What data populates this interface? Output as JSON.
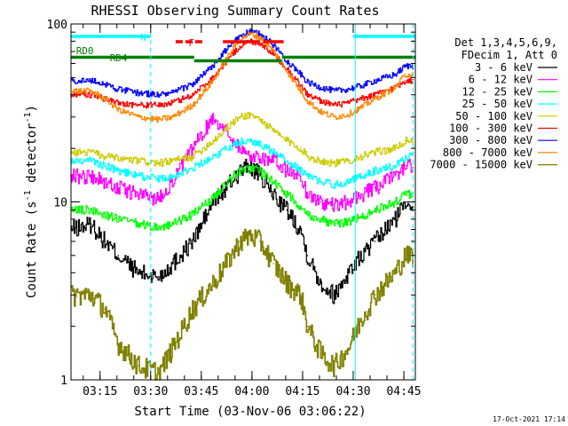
{
  "chart_data": {
    "type": "line",
    "title": "RHESSI Observing Summary Count Rates",
    "xlabel": "Start Time (03-Nov-06 03:06:22)",
    "ylabel": "Count Rate (s",
    "ylabel_sup": "-1",
    "ylabel_tail": " detector",
    "ylabel_sup2": "-1",
    "ylabel_end": ")",
    "yscale": "log",
    "ylim": [
      1,
      100
    ],
    "xlim_minutes": [
      0,
      102
    ],
    "y_ticks": [
      {
        "value": 1,
        "label": "1"
      },
      {
        "value": 10,
        "label": "10"
      },
      {
        "value": 100,
        "label": "100"
      }
    ],
    "x_ticks": [
      {
        "value": 8.6,
        "label": "03:15"
      },
      {
        "value": 23.6,
        "label": "03:30"
      },
      {
        "value": 38.6,
        "label": "03:45"
      },
      {
        "value": 53.6,
        "label": "04:00"
      },
      {
        "value": 68.6,
        "label": "04:15"
      },
      {
        "value": 83.6,
        "label": "04:30"
      },
      {
        "value": 98.6,
        "label": "04:45"
      }
    ],
    "legend_header": [
      "Det 1,3,4,5,6,9,",
      "FDecim 1, Att 0"
    ],
    "legend_position": "right",
    "series": [
      {
        "name": "3 - 6 keV",
        "color": "#000000",
        "x": [
          0,
          6,
          10,
          14,
          20,
          26,
          30,
          36,
          42,
          46,
          50,
          53,
          56,
          60,
          64,
          68,
          70,
          74,
          78,
          82,
          86,
          90,
          96,
          99
        ],
        "y": [
          7,
          7.5,
          6,
          5,
          4,
          3.8,
          4.5,
          6,
          10,
          12,
          15,
          16,
          14,
          11,
          9,
          7,
          5,
          3.5,
          3,
          4,
          5,
          6,
          8,
          10
        ]
      },
      {
        "name": "6 - 12 keV",
        "color": "#ff00ff",
        "x": [
          0,
          6,
          10,
          14,
          20,
          26,
          30,
          36,
          42,
          46,
          50,
          53,
          56,
          60,
          64,
          68,
          70,
          74,
          78,
          82,
          86,
          90,
          96,
          99
        ],
        "y": [
          14,
          14,
          13,
          12,
          11,
          10.5,
          13,
          20,
          30,
          25,
          20,
          18,
          18,
          17,
          15,
          14,
          11,
          10,
          9.5,
          10,
          11,
          12,
          14,
          16
        ]
      },
      {
        "name": "12 - 25 keV",
        "color": "#00ff00",
        "x": [
          0,
          6,
          10,
          14,
          20,
          26,
          30,
          36,
          42,
          46,
          50,
          53,
          56,
          60,
          64,
          68,
          70,
          74,
          78,
          82,
          86,
          90,
          96,
          99
        ],
        "y": [
          9,
          9,
          8.5,
          8,
          7.5,
          7.2,
          7.5,
          8.5,
          10.5,
          13,
          15,
          15.5,
          15,
          13,
          11,
          9.5,
          8.5,
          8,
          7.5,
          7.8,
          8.2,
          9,
          10,
          11
        ]
      },
      {
        "name": "25 - 50 keV",
        "color": "#00ffff",
        "x": [
          0,
          6,
          10,
          14,
          20,
          26,
          30,
          36,
          42,
          46,
          50,
          53,
          56,
          60,
          64,
          68,
          70,
          74,
          78,
          82,
          86,
          90,
          96,
          99
        ],
        "y": [
          17,
          17,
          16,
          15,
          14,
          13.5,
          14,
          15.5,
          18,
          20,
          22,
          22,
          21,
          19,
          17,
          15,
          14,
          13,
          12.5,
          13,
          14,
          15,
          16,
          18
        ]
      },
      {
        "name": "50 - 100 keV",
        "color": "#cccc00",
        "x": [
          0,
          6,
          10,
          14,
          20,
          26,
          30,
          36,
          42,
          46,
          50,
          53,
          56,
          60,
          64,
          68,
          70,
          74,
          78,
          82,
          86,
          90,
          96,
          99
        ],
        "y": [
          19,
          19,
          18,
          17.5,
          17,
          16.5,
          17,
          18,
          22,
          26,
          30,
          31,
          29,
          25,
          22,
          20,
          18,
          17,
          16.5,
          17,
          18,
          19,
          20,
          22
        ]
      },
      {
        "name": "100 - 300 keV",
        "color": "#ff0000",
        "x": [
          0,
          6,
          10,
          14,
          20,
          26,
          30,
          36,
          42,
          46,
          50,
          53,
          56,
          60,
          64,
          68,
          70,
          74,
          78,
          82,
          86,
          90,
          96,
          99
        ],
        "y": [
          40,
          40,
          38,
          36,
          35,
          35,
          36,
          40,
          50,
          62,
          75,
          80,
          78,
          68,
          56,
          45,
          40,
          37,
          35,
          36,
          38,
          40,
          44,
          48
        ]
      },
      {
        "name": "300 - 800 keV",
        "color": "#0000ff",
        "x": [
          0,
          6,
          10,
          14,
          20,
          26,
          30,
          36,
          42,
          46,
          50,
          53,
          56,
          60,
          64,
          68,
          70,
          74,
          78,
          82,
          86,
          90,
          96,
          99
        ],
        "y": [
          48,
          48,
          46,
          43,
          41,
          40,
          41,
          46,
          58,
          72,
          86,
          90,
          88,
          76,
          62,
          52,
          47,
          44,
          42,
          43,
          45,
          48,
          52,
          58
        ]
      },
      {
        "name": "800 - 7000 keV",
        "color": "#ff8800",
        "x": [
          0,
          6,
          10,
          14,
          20,
          26,
          30,
          36,
          42,
          46,
          50,
          53,
          56,
          60,
          64,
          68,
          70,
          74,
          78,
          82,
          86,
          90,
          96,
          99
        ],
        "y": [
          42,
          42,
          38,
          33,
          30,
          29,
          30,
          35,
          48,
          64,
          82,
          88,
          84,
          70,
          54,
          42,
          37,
          32,
          30,
          31,
          34,
          38,
          44,
          52
        ]
      },
      {
        "name": "7000 - 15000 keV",
        "color": "#808000",
        "x": [
          0,
          6,
          10,
          14,
          20,
          26,
          30,
          36,
          42,
          46,
          50,
          53,
          56,
          60,
          64,
          68,
          70,
          74,
          78,
          82,
          86,
          90,
          96,
          99
        ],
        "y": [
          3,
          3,
          2.5,
          1.6,
          1.2,
          1.1,
          1.5,
          2.5,
          3.5,
          4.5,
          6,
          6.5,
          6,
          4.5,
          3.5,
          3,
          2,
          1.4,
          1.2,
          1.5,
          2.2,
          3,
          4,
          5
        ]
      }
    ],
    "annotations": [
      {
        "label": "N",
        "color": "#00ffff"
      },
      {
        "label": "F",
        "color": "#ff0000"
      },
      {
        "label": "RD0",
        "color": "#008000"
      },
      {
        "label": "RD4",
        "color": "#008000"
      }
    ],
    "day_intervals_minutes": [
      [
        0,
        23.6
      ],
      [
        83.6,
        102
      ]
    ],
    "night_band_color": "#00ffff",
    "flare_segments_minutes": [
      [
        31,
        39
      ],
      [
        45,
        56
      ],
      [
        57,
        63
      ]
    ],
    "flare_color": "#ff0000",
    "rd_band_color": "#008000",
    "rd_value": 65,
    "vertical_lines": [
      {
        "x": 23.6,
        "style": "dashed",
        "color": "#00ffff"
      },
      {
        "x": 84.2,
        "style": "solid",
        "color": "#00ffff"
      },
      {
        "x": 101.3,
        "style": "dashed",
        "color": "#00ffff"
      }
    ],
    "timestamp": "17-Oct-2021 17:14"
  }
}
